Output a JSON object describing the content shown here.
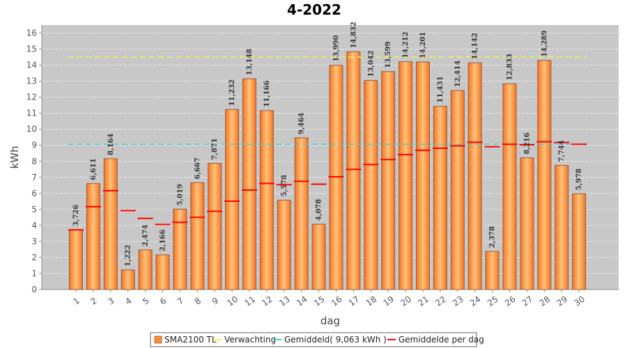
{
  "chart_data": {
    "type": "bar",
    "title": "4-2022",
    "xlabel": "dag",
    "ylabel": "kWh",
    "ylim": [
      0,
      16.5
    ],
    "yticks": [
      0,
      1,
      2,
      3,
      4,
      5,
      6,
      7,
      8,
      9,
      10,
      11,
      12,
      13,
      14,
      15,
      16
    ],
    "grid": true,
    "legend_position": "bottom-center",
    "categories": [
      "1",
      "2",
      "3",
      "4",
      "5",
      "6",
      "7",
      "8",
      "9",
      "10",
      "11",
      "12",
      "13",
      "14",
      "15",
      "16",
      "17",
      "18",
      "19",
      "20",
      "21",
      "22",
      "23",
      "24",
      "25",
      "26",
      "27",
      "28",
      "29",
      "30"
    ],
    "series": [
      {
        "name": "SMA2100 TL",
        "kind": "bar",
        "color": "#ff8c33",
        "values": [
          3.726,
          6.611,
          8.164,
          1.222,
          2.474,
          2.166,
          5.019,
          6.667,
          7.871,
          11.232,
          13.148,
          11.166,
          5.578,
          9.464,
          4.078,
          13.99,
          14.832,
          13.042,
          13.599,
          14.212,
          14.201,
          11.431,
          12.414,
          14.142,
          2.378,
          12.833,
          8.216,
          14.289,
          7.744,
          5.978
        ],
        "data_labels": [
          "3,726",
          "6,611",
          "8,164",
          "1,222",
          "2,474",
          "2,166",
          "5,019",
          "6,667",
          "7,871",
          "11,232",
          "13,148",
          "11,166",
          "5,578",
          "9,464",
          "4,078",
          "13,990",
          "14,832",
          "13,042",
          "13,599",
          "14,212",
          "14,201",
          "11,431",
          "12,414",
          "14,142",
          "2,378",
          "12,833",
          "8,216",
          "14,289",
          "7,744",
          "5,978"
        ]
      },
      {
        "name": "Verwachting",
        "kind": "dashed-line",
        "color": "#f2f25a",
        "value": 14.5
      },
      {
        "name": "Gemiddeld( 9,063 kWh )",
        "kind": "dashed-line",
        "color": "#3fd0d0",
        "value": 9.063
      },
      {
        "name": "Gemiddelde per dag",
        "kind": "markers",
        "color": "#ff0000",
        "values": [
          3.726,
          5.169,
          6.167,
          4.931,
          4.439,
          4.06,
          4.197,
          4.506,
          4.88,
          5.515,
          6.209,
          6.622,
          6.541,
          6.75,
          6.572,
          7.035,
          7.494,
          7.802,
          8.107,
          8.412,
          8.687,
          8.812,
          8.969,
          9.185,
          8.913,
          9.064,
          9.033,
          9.221,
          9.17,
          9.063
        ]
      }
    ]
  }
}
